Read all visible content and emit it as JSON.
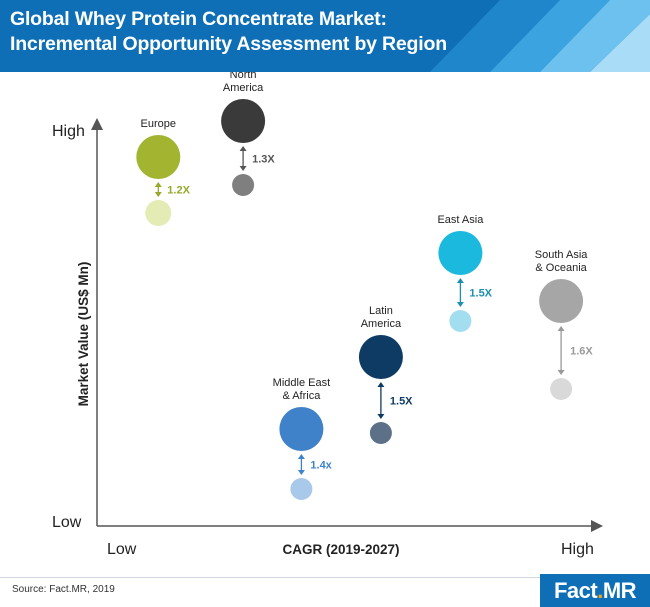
{
  "header": {
    "title": "Global Whey Protein Concentrate Market: Incremental Opportunity Assessment by Region"
  },
  "chart_data": {
    "type": "scatter",
    "title": "Global Whey Protein Concentrate Market: Incremental Opportunity Assessment by Region",
    "xlabel": "CAGR (2019-2027)",
    "ylabel": "Market Value (US$ Mn)",
    "x_ticks": [
      "Low",
      "High"
    ],
    "y_ticks": [
      "Low",
      "High"
    ],
    "scale": "qualitative, 0 = Low to 1 = High",
    "xlim": [
      0,
      1
    ],
    "ylim": [
      0,
      1
    ],
    "series": [
      {
        "name_lines": [
          "North",
          "America"
        ],
        "multiplier": "1.3X",
        "x": 0.27,
        "y_current": 0.96,
        "y_2019": 0.8,
        "r_current": 22,
        "r_2019": 11,
        "color_current": "#3a3a3a",
        "color_2019": "#7f7f7f",
        "label_color": "#555555"
      },
      {
        "name_lines": [
          "Europe"
        ],
        "multiplier": "1.2X",
        "x": 0.11,
        "y_current": 0.87,
        "y_2019": 0.73,
        "r_current": 22,
        "r_2019": 13,
        "color_current": "#a3b430",
        "color_2019": "#e4ebb5",
        "label_color": "#97a82a"
      },
      {
        "name_lines": [
          "East Asia"
        ],
        "multiplier": "1.5X",
        "x": 0.68,
        "y_current": 0.63,
        "y_2019": 0.46,
        "r_current": 22,
        "r_2019": 11,
        "color_current": "#1ab9dd",
        "color_2019": "#a3def0",
        "label_color": "#1b8fb0"
      },
      {
        "name_lines": [
          "South Asia",
          "& Oceania"
        ],
        "multiplier": "1.6X",
        "x": 0.87,
        "y_current": 0.51,
        "y_2019": 0.29,
        "r_current": 22,
        "r_2019": 11,
        "color_current": "#a6a6a6",
        "color_2019": "#d9d9d9",
        "label_color": "#999999"
      },
      {
        "name_lines": [
          "Latin",
          "America"
        ],
        "multiplier": "1.5X",
        "x": 0.53,
        "y_current": 0.37,
        "y_2019": 0.18,
        "r_current": 22,
        "r_2019": 11,
        "color_current": "#0e3b63",
        "color_2019": "#5c7187",
        "label_color": "#0e3b63"
      },
      {
        "name_lines": [
          "Middle East",
          "& Africa"
        ],
        "multiplier": "1.4x",
        "x": 0.38,
        "y_current": 0.19,
        "y_2019": 0.04,
        "r_current": 22,
        "r_2019": 11,
        "color_current": "#3f82c9",
        "color_2019": "#a9c9ea",
        "label_color": "#3f82c9"
      }
    ]
  },
  "footer": {
    "source": "Source: Fact.MR, 2019",
    "logo_text": "Fact",
    "logo_dot": ".",
    "logo_suffix": "MR"
  },
  "colors": {
    "brand_blue": "#0e6fb6",
    "axis": "#555555",
    "logo_accent": "#f4a51c"
  }
}
